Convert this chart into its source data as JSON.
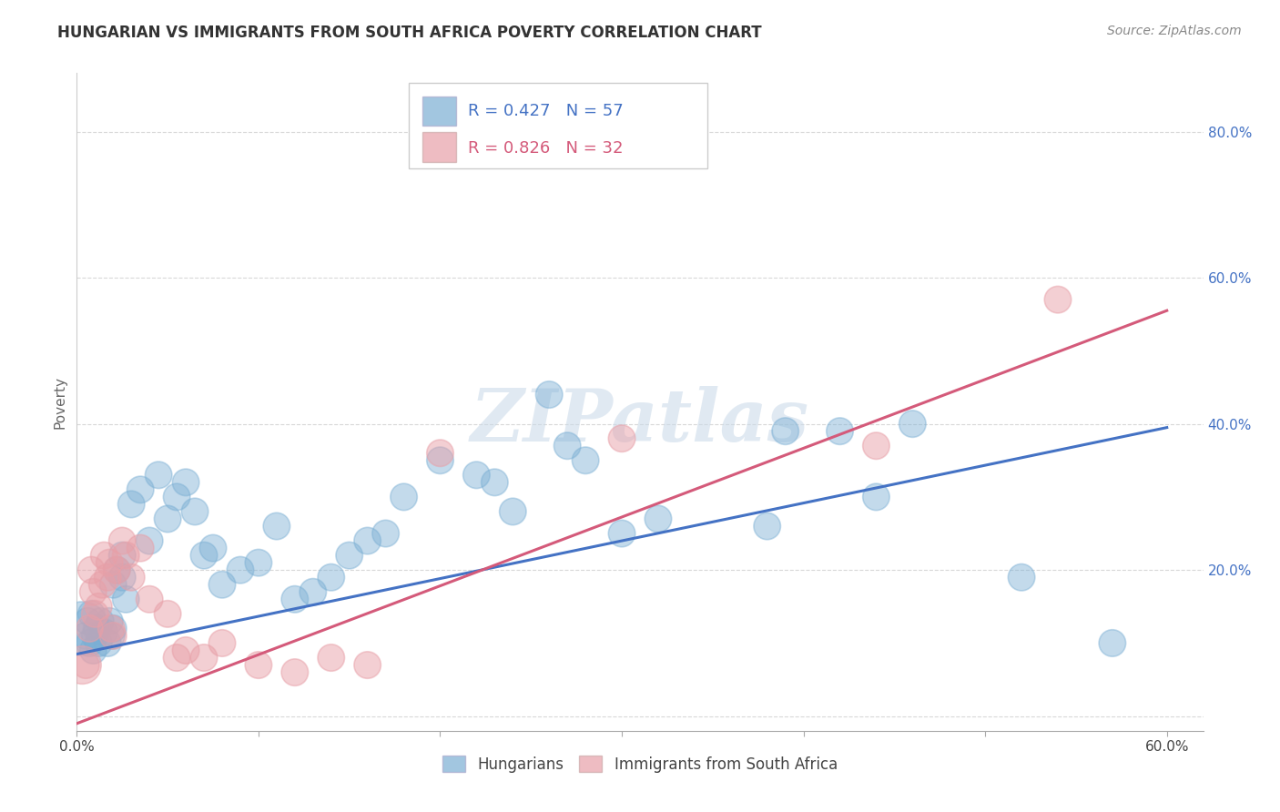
{
  "title": "HUNGARIAN VS IMMIGRANTS FROM SOUTH AFRICA POVERTY CORRELATION CHART",
  "source": "Source: ZipAtlas.com",
  "ylabel": "Poverty",
  "xlim": [
    0.0,
    0.62
  ],
  "ylim": [
    -0.02,
    0.88
  ],
  "xtick_positions": [
    0.0,
    0.1,
    0.2,
    0.3,
    0.4,
    0.5,
    0.6
  ],
  "xticklabels": [
    "0.0%",
    "",
    "",
    "",
    "",
    "",
    "60.0%"
  ],
  "ytick_positions": [
    0.0,
    0.2,
    0.4,
    0.6,
    0.8
  ],
  "yticklabels": [
    "",
    "20.0%",
    "40.0%",
    "60.0%",
    "80.0%"
  ],
  "blue_color": "#7bafd4",
  "pink_color": "#e8a0a8",
  "blue_line_color": "#4472c4",
  "pink_line_color": "#d45a7a",
  "blue_r": 0.427,
  "blue_n": 57,
  "pink_r": 0.826,
  "pink_n": 32,
  "watermark": "ZIPatlas",
  "background_color": "#ffffff",
  "grid_color": "#d8d8d8",
  "blue_line_y0": 0.085,
  "blue_line_y1": 0.395,
  "pink_line_y0": -0.01,
  "pink_line_y1": 0.555,
  "blue_scatter_x": [
    0.003,
    0.005,
    0.006,
    0.007,
    0.008,
    0.009,
    0.01,
    0.011,
    0.012,
    0.013,
    0.015,
    0.017,
    0.018,
    0.019,
    0.02,
    0.02,
    0.022,
    0.025,
    0.025,
    0.027,
    0.03,
    0.035,
    0.04,
    0.045,
    0.05,
    0.055,
    0.06,
    0.065,
    0.07,
    0.075,
    0.08,
    0.09,
    0.1,
    0.11,
    0.12,
    0.13,
    0.14,
    0.15,
    0.16,
    0.17,
    0.18,
    0.2,
    0.22,
    0.23,
    0.24,
    0.26,
    0.27,
    0.28,
    0.3,
    0.32,
    0.38,
    0.39,
    0.42,
    0.44,
    0.46,
    0.52,
    0.57
  ],
  "blue_scatter_y": [
    0.12,
    0.11,
    0.13,
    0.1,
    0.14,
    0.09,
    0.11,
    0.12,
    0.1,
    0.13,
    0.115,
    0.1,
    0.13,
    0.11,
    0.12,
    0.18,
    0.2,
    0.22,
    0.19,
    0.16,
    0.29,
    0.31,
    0.24,
    0.33,
    0.27,
    0.3,
    0.32,
    0.28,
    0.22,
    0.23,
    0.18,
    0.2,
    0.21,
    0.26,
    0.16,
    0.17,
    0.19,
    0.22,
    0.24,
    0.25,
    0.3,
    0.35,
    0.33,
    0.32,
    0.28,
    0.44,
    0.37,
    0.35,
    0.25,
    0.27,
    0.26,
    0.39,
    0.39,
    0.3,
    0.4,
    0.19,
    0.1
  ],
  "blue_scatter_size": [
    200,
    50,
    50,
    50,
    50,
    50,
    50,
    50,
    50,
    50,
    50,
    50,
    50,
    50,
    50,
    50,
    50,
    50,
    50,
    50,
    50,
    50,
    50,
    50,
    50,
    50,
    50,
    50,
    50,
    50,
    50,
    50,
    50,
    50,
    50,
    50,
    50,
    50,
    50,
    50,
    50,
    50,
    50,
    50,
    50,
    50,
    50,
    50,
    50,
    50,
    50,
    50,
    50,
    50,
    50,
    50,
    50
  ],
  "pink_scatter_x": [
    0.003,
    0.005,
    0.007,
    0.008,
    0.009,
    0.01,
    0.012,
    0.014,
    0.015,
    0.017,
    0.018,
    0.019,
    0.02,
    0.022,
    0.025,
    0.027,
    0.03,
    0.035,
    0.04,
    0.05,
    0.055,
    0.06,
    0.07,
    0.08,
    0.1,
    0.12,
    0.14,
    0.16,
    0.2,
    0.3,
    0.44,
    0.54
  ],
  "pink_scatter_y": [
    0.07,
    0.07,
    0.12,
    0.2,
    0.17,
    0.14,
    0.15,
    0.18,
    0.22,
    0.19,
    0.21,
    0.12,
    0.11,
    0.2,
    0.24,
    0.22,
    0.19,
    0.23,
    0.16,
    0.14,
    0.08,
    0.09,
    0.08,
    0.1,
    0.07,
    0.06,
    0.08,
    0.07,
    0.36,
    0.38,
    0.37,
    0.57
  ],
  "pink_scatter_size": [
    100,
    50,
    50,
    50,
    50,
    50,
    50,
    50,
    50,
    50,
    50,
    50,
    50,
    50,
    50,
    50,
    50,
    50,
    50,
    50,
    50,
    50,
    50,
    50,
    50,
    50,
    50,
    50,
    50,
    50,
    50,
    50
  ]
}
